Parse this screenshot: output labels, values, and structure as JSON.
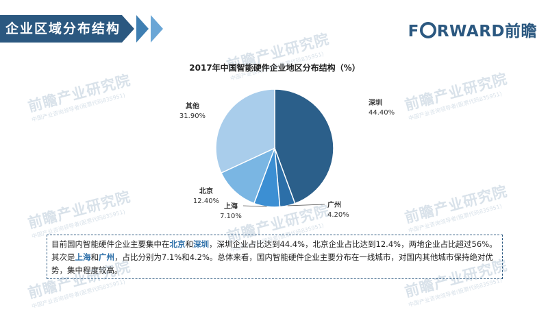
{
  "header": {
    "section_title": "企业区域分布结构",
    "logo_text_1": "F",
    "logo_text_2": "RWARD前瞻",
    "watermark_main": "前瞻产业研究院",
    "watermark_sub": "中国产业咨询领导者(股票代码835951)"
  },
  "chart_data": {
    "type": "pie",
    "title": "2017年中国智能硬件企业地区分布结构（%）",
    "categories": [
      "深圳",
      "广州",
      "上海",
      "北京",
      "其他"
    ],
    "values": [
      44.4,
      4.2,
      7.1,
      12.4,
      31.9
    ],
    "value_labels": [
      "44.40%",
      "4.20%",
      "7.10%",
      "12.40%",
      "31.90%"
    ],
    "colors": [
      "#2b5f8a",
      "#2c6fa8",
      "#3c8fd3",
      "#7ab6e3",
      "#a9cdeb"
    ]
  },
  "note": {
    "p1_a": "目前国内智能硬件企业主要集中在",
    "p1_hl1": "北京",
    "p1_b": "和",
    "p1_hl2": "深圳",
    "p1_c": "，深圳企业占比达到44.4%，北京企业占比达到12.4%，两地企业占比超过56%。",
    "p2_a": "其次是",
    "p2_hl1": "上海",
    "p2_b": "和",
    "p2_hl2": "广州",
    "p2_c": "，占比分别为7.1%和4.2%。总体来看，国内智能硬件企业主要分布在一线城市，对国内其他城市保持绝对优势，集中程度较高。"
  }
}
